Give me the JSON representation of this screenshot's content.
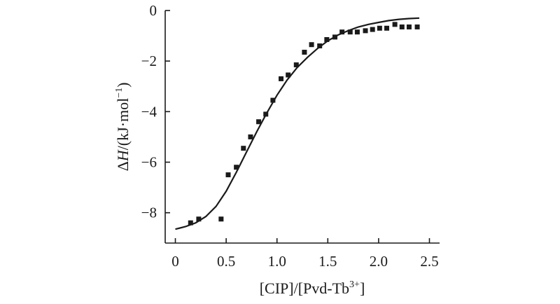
{
  "chart_data": {
    "type": "scatter",
    "xlabel_parts": [
      "[CIP]/[Pvd-Tb",
      "3+",
      "]"
    ],
    "ylabel_parts": [
      "Δ",
      "H",
      "/(kJ·mol",
      "−1",
      ")"
    ],
    "xlim": [
      -0.1,
      2.6
    ],
    "ylim": [
      -9.2,
      0
    ],
    "x_ticks": [
      0,
      0.5,
      1.0,
      1.5,
      2.0,
      2.5
    ],
    "x_tick_labels": [
      "0",
      "0.5",
      "1.0",
      "1.5",
      "2.0",
      "2.5"
    ],
    "y_ticks": [
      0,
      -2,
      -4,
      -6,
      -8
    ],
    "y_tick_labels": [
      "0",
      "−2",
      "−4",
      "−6",
      "−8"
    ],
    "grid": false,
    "series": [
      {
        "kind": "points",
        "marker": "square",
        "x": [
          0.15,
          0.23,
          0.45,
          0.52,
          0.6,
          0.67,
          0.74,
          0.82,
          0.89,
          0.96,
          1.04,
          1.11,
          1.19,
          1.27,
          1.34,
          1.42,
          1.49,
          1.57,
          1.64,
          1.72,
          1.79,
          1.87,
          1.94,
          2.01,
          2.08,
          2.16,
          2.23,
          2.3,
          2.38
        ],
        "y": [
          -8.4,
          -8.25,
          -8.25,
          -6.5,
          -6.2,
          -5.45,
          -5.0,
          -4.4,
          -4.1,
          -3.55,
          -2.7,
          -2.55,
          -2.15,
          -1.65,
          -1.35,
          -1.4,
          -1.15,
          -1.05,
          -0.85,
          -0.85,
          -0.85,
          -0.8,
          -0.75,
          -0.7,
          -0.7,
          -0.55,
          -0.65,
          -0.65,
          -0.65
        ]
      },
      {
        "kind": "curve",
        "x": [
          0.0,
          0.1,
          0.2,
          0.3,
          0.4,
          0.5,
          0.6,
          0.7,
          0.8,
          0.9,
          1.0,
          1.1,
          1.2,
          1.3,
          1.4,
          1.5,
          1.6,
          1.7,
          1.8,
          1.9,
          2.0,
          2.1,
          2.2,
          2.3,
          2.4
        ],
        "y": [
          -8.65,
          -8.55,
          -8.4,
          -8.15,
          -7.75,
          -7.15,
          -6.4,
          -5.6,
          -4.8,
          -4.05,
          -3.35,
          -2.75,
          -2.25,
          -1.85,
          -1.5,
          -1.2,
          -0.97,
          -0.8,
          -0.65,
          -0.55,
          -0.47,
          -0.4,
          -0.35,
          -0.32,
          -0.3
        ]
      }
    ]
  }
}
